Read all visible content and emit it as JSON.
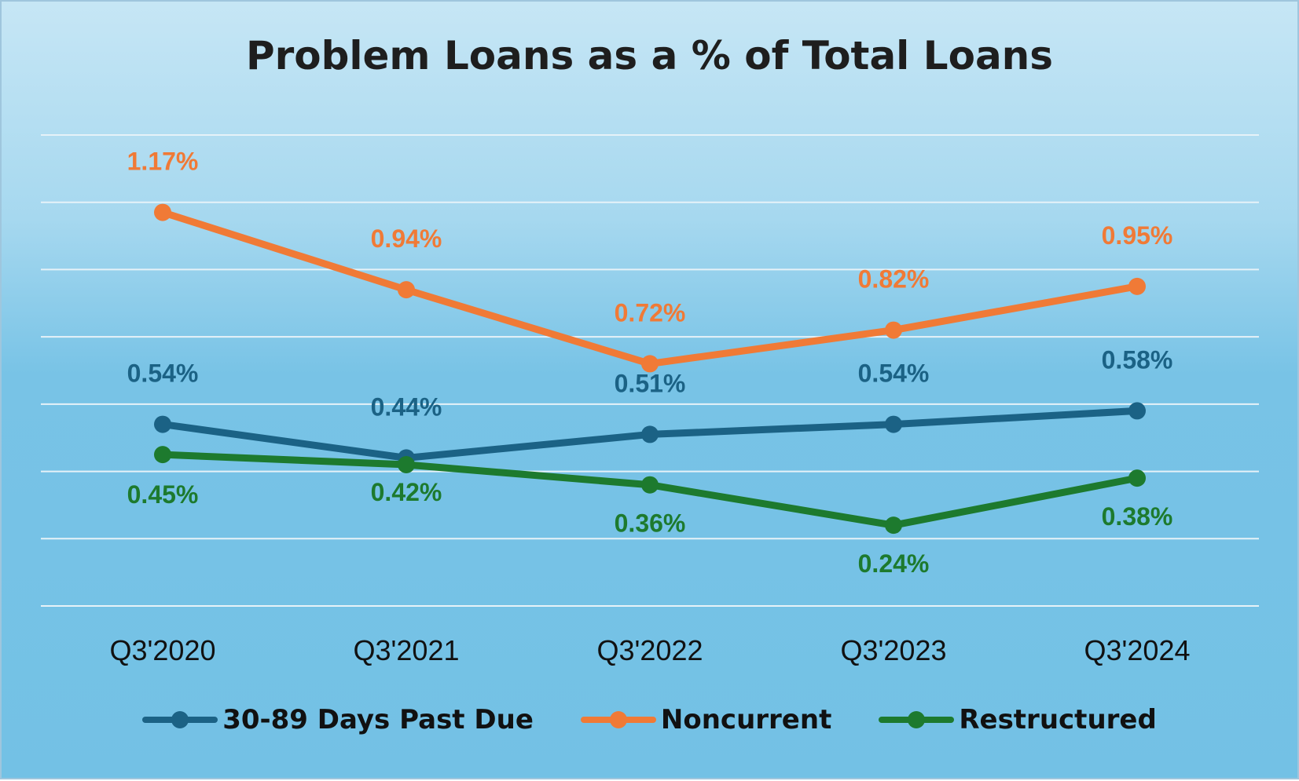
{
  "chart_data": {
    "type": "line",
    "title": "Problem Loans as a % of Total Loans",
    "categories": [
      "Q3'2020",
      "Q3'2021",
      "Q3'2022",
      "Q3'2023",
      "Q3'2024"
    ],
    "series": [
      {
        "name": "30-89 Days Past Due",
        "values": [
          0.54,
          0.44,
          0.51,
          0.54,
          0.58
        ],
        "labels": [
          "0.54%",
          "0.44%",
          "0.51%",
          "0.54%",
          "0.58%"
        ],
        "color": "#1b6285"
      },
      {
        "name": "Noncurrent",
        "values": [
          1.17,
          0.94,
          0.72,
          0.82,
          0.95
        ],
        "labels": [
          "1.17%",
          "0.94%",
          "0.72%",
          "0.82%",
          "0.95%"
        ],
        "color": "#f07a36"
      },
      {
        "name": "Restructured",
        "values": [
          0.45,
          0.42,
          0.36,
          0.24,
          0.38
        ],
        "labels": [
          "0.45%",
          "0.42%",
          "0.36%",
          "0.24%",
          "0.38%"
        ],
        "color": "#1d7a2e"
      }
    ],
    "ylim": [
      0,
      1.4
    ],
    "gridlines": true,
    "legend_position": "bottom"
  }
}
